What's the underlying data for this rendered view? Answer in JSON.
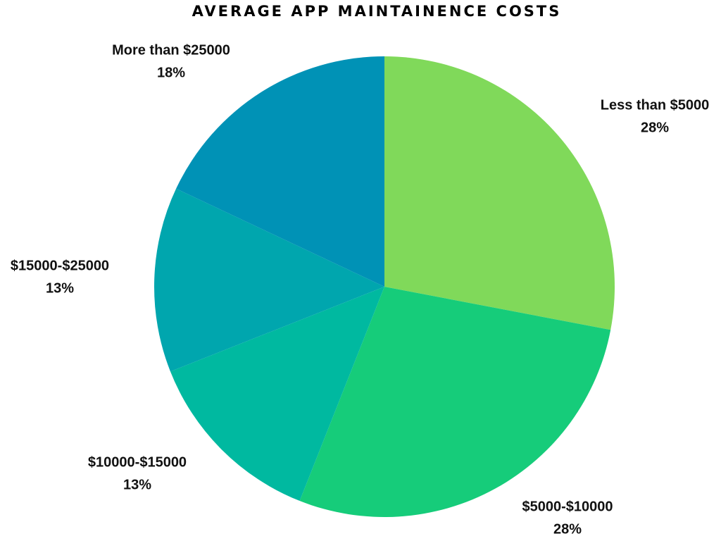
{
  "chart_data": {
    "type": "pie",
    "title": "AVERAGE APP MAINTAINENCE COSTS",
    "categories": [
      "Less than $5000",
      "$5000-$10000",
      "$10000-$15000",
      "$15000-$25000",
      "More than $25000"
    ],
    "values": [
      28,
      28,
      13,
      13,
      18
    ],
    "value_labels": [
      "28%",
      "28%",
      "13%",
      "13%",
      "18%"
    ],
    "colors": [
      "#80d95a",
      "#16cc7a",
      "#00b9a0",
      "#00a6ae",
      "#0092b6"
    ]
  }
}
